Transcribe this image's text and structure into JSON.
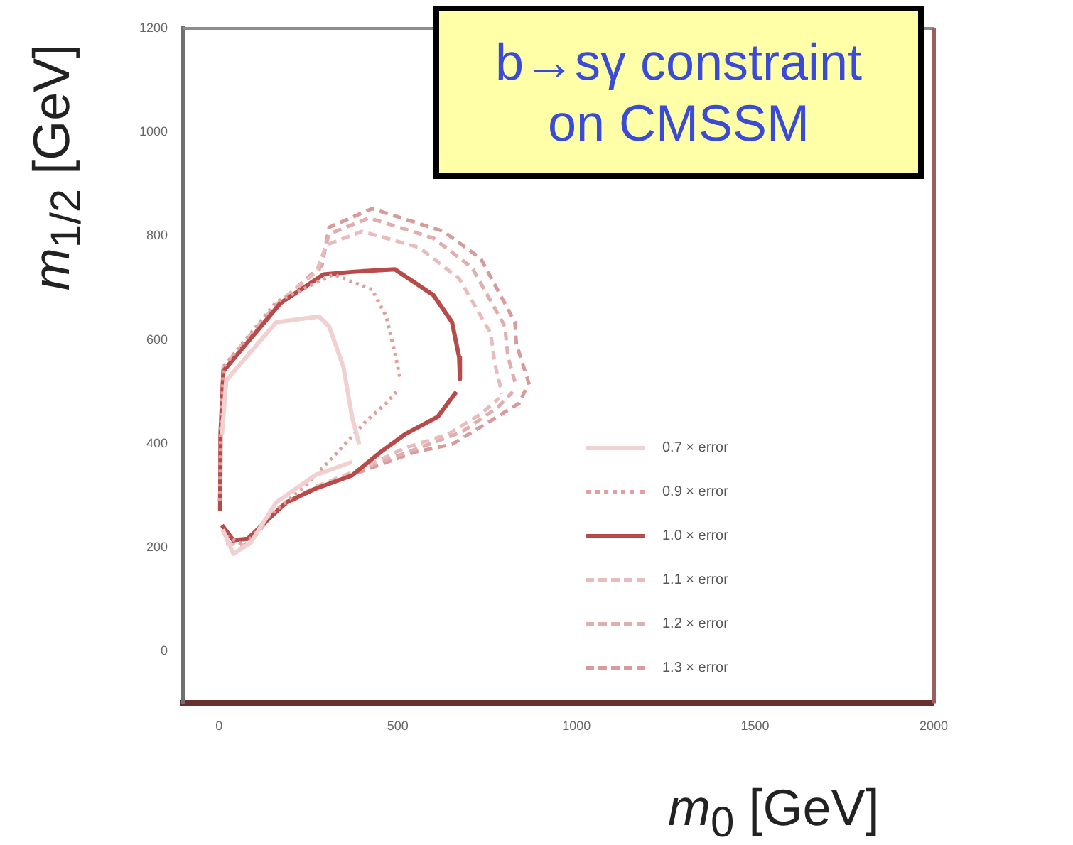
{
  "chart_data": {
    "type": "line",
    "title": "b→sγ constraint on CMSSM",
    "xlabel": "m$_{0}$ [GeV]",
    "ylabel": "m$_{1/2}$ [GeV]",
    "xlim": [
      -100,
      2000
    ],
    "xticks": [
      0,
      500,
      1000,
      1500,
      2000
    ],
    "ylim": [
      -100,
      1200
    ],
    "yticks": [
      0,
      200,
      400,
      600,
      800,
      1000,
      1200
    ],
    "grid": false,
    "legend": "right",
    "marker": "none",
    "series": [
      {
        "name": "0.7 × error",
        "color": "#f0d0d0",
        "line_style": "solid",
        "x": [
          8,
          20,
          160,
          280,
          308,
          348,
          372,
          392
        ],
        "values": [
          418,
          522,
          634,
          645,
          626,
          548,
          452,
          399
        ]
      },
      {
        "color": "#f0d0d0",
        "line_style": "solid",
        "x": [
          10,
          40,
          88,
          160,
          268,
          372
        ],
        "values": [
          235,
          188,
          209,
          287,
          339,
          365
        ]
      },
      {
        "name": "0.9 × error",
        "color": "#e0a0a0",
        "line_style": "dotted",
        "x": [
          2,
          4,
          12,
          160,
          320,
          428,
          468,
          492,
          508
        ],
        "values": [
          290,
          418,
          548,
          673,
          726,
          697,
          645,
          574,
          522
        ]
      },
      {
        "color": "#e0a0a0",
        "line_style": "dotted",
        "x": [
          20,
          72,
          140,
          240,
          332,
          412,
          468,
          496
        ],
        "values": [
          222,
          204,
          261,
          318,
          384,
          444,
          478,
          500
        ]
      },
      {
        "name": "1.0 × error",
        "color": "#b94a4a",
        "line_style": "solid",
        "x": [
          3,
          4,
          12,
          172,
          292,
          372,
          492,
          600,
          652,
          672,
          674
        ],
        "values": [
          270,
          418,
          540,
          671,
          726,
          731,
          736,
          686,
          634,
          566,
          525
        ]
      },
      {
        "color": "#b94a4a",
        "line_style": "solid",
        "x": [
          8,
          40,
          80,
          120,
          188,
          268,
          372,
          452,
          520,
          612,
          664
        ],
        "values": [
          243,
          214,
          217,
          243,
          287,
          313,
          339,
          384,
          418,
          452,
          500
        ]
      },
      {
        "name": "1.1 × error",
        "color": "#e8bcbc",
        "line_style": "dashed",
        "x": [
          2,
          4,
          12,
          160,
          272,
          300,
          400,
          560,
          672,
          760,
          772,
          792
        ],
        "values": [
          290,
          418,
          548,
          668,
          731,
          783,
          809,
          778,
          718,
          613,
          553,
          496
        ]
      },
      {
        "color": "#e8bcbc",
        "line_style": "dashed",
        "x": [
          20,
          80,
          160,
          272,
          400,
          520,
          640,
          732,
          784
        ],
        "values": [
          209,
          204,
          274,
          318,
          352,
          392,
          418,
          457,
          488
        ]
      },
      {
        "name": "1.2 × error",
        "color": "#e0aeae",
        "line_style": "dashed",
        "x": [
          2,
          4,
          12,
          160,
          280,
          308,
          420,
          600,
          708,
          800,
          808,
          832
        ],
        "values": [
          290,
          418,
          548,
          668,
          736,
          804,
          835,
          796,
          739,
          626,
          569,
          509
        ]
      },
      {
        "color": "#e0aeae",
        "line_style": "dashed",
        "x": [
          20,
          80,
          160,
          280,
          420,
          560,
          680,
          780,
          822
        ],
        "values": [
          209,
          204,
          274,
          318,
          357,
          392,
          423,
          470,
          500
        ]
      },
      {
        "name": "1.3 × error",
        "color": "#d89a9a",
        "line_style": "dashed",
        "x": [
          2,
          4,
          12,
          160,
          288,
          308,
          428,
          628,
          732,
          828,
          832,
          868
        ],
        "values": [
          290,
          418,
          548,
          666,
          744,
          817,
          853,
          809,
          757,
          634,
          592,
          514
        ]
      },
      {
        "color": "#d89a9a",
        "line_style": "dashed",
        "x": [
          20,
          80,
          160,
          280,
          420,
          548,
          652,
          760,
          840,
          858
        ],
        "values": [
          209,
          204,
          274,
          318,
          352,
          384,
          399,
          444,
          478,
          505
        ]
      }
    ]
  }
}
